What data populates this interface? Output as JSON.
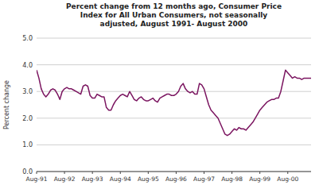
{
  "chart_data": {
    "type": "line",
    "title": "Percent change from 12 months ago, Consumer Price\nIndex for All Urban Consumers, not seasonally\nadjusted, August 1991- August 2000",
    "ylabel": "Percent change",
    "color": "#7B1560",
    "grid": true,
    "ylim": [
      0.0,
      5.0
    ],
    "yticks": [
      {
        "value": 0.0,
        "label": "0.0"
      },
      {
        "value": 1.0,
        "label": "1.0"
      },
      {
        "value": 2.0,
        "label": "2.0"
      },
      {
        "value": 3.0,
        "label": "3.0"
      },
      {
        "value": 4.0,
        "label": "4.0"
      },
      {
        "value": 5.0,
        "label": "5.0"
      }
    ],
    "categories": [
      "Aug-91",
      null,
      null,
      null,
      null,
      null,
      null,
      null,
      null,
      null,
      null,
      null,
      "Aug-92",
      null,
      null,
      null,
      null,
      null,
      null,
      null,
      null,
      null,
      null,
      null,
      "Aug-93",
      null,
      null,
      null,
      null,
      null,
      null,
      null,
      null,
      null,
      null,
      null,
      "Aug-94",
      null,
      null,
      null,
      null,
      null,
      null,
      null,
      null,
      null,
      null,
      null,
      "Aug-95",
      null,
      null,
      null,
      null,
      null,
      null,
      null,
      null,
      null,
      null,
      null,
      "Aug-96",
      null,
      null,
      null,
      null,
      null,
      null,
      null,
      null,
      null,
      null,
      null,
      "Aug-97",
      null,
      null,
      null,
      null,
      null,
      null,
      null,
      null,
      null,
      null,
      null,
      "Aug-98",
      null,
      null,
      null,
      null,
      null,
      null,
      null,
      null,
      null,
      null,
      null,
      "Aug-99",
      null,
      null,
      null,
      null,
      null,
      null,
      null,
      null,
      null,
      null,
      null,
      "Aug-00",
      null,
      null,
      null,
      null,
      null,
      null,
      null,
      null,
      null,
      null
    ],
    "values": [
      3.8,
      3.5,
      3.1,
      2.9,
      2.8,
      2.9,
      3.05,
      3.1,
      3.05,
      2.9,
      2.7,
      3.0,
      3.1,
      3.15,
      3.1,
      3.1,
      3.05,
      3.0,
      2.95,
      2.9,
      3.2,
      3.25,
      3.2,
      2.85,
      2.75,
      2.75,
      2.9,
      2.85,
      2.8,
      2.8,
      2.4,
      2.3,
      2.3,
      2.5,
      2.65,
      2.75,
      2.85,
      2.9,
      2.85,
      2.8,
      3.0,
      2.85,
      2.7,
      2.65,
      2.75,
      2.8,
      2.7,
      2.65,
      2.65,
      2.7,
      2.75,
      2.65,
      2.6,
      2.75,
      2.8,
      2.85,
      2.9,
      2.9,
      2.85,
      2.85,
      2.9,
      3.0,
      3.2,
      3.3,
      3.1,
      3.0,
      2.95,
      3.0,
      2.9,
      2.9,
      3.3,
      3.25,
      3.1,
      2.8,
      2.5,
      2.3,
      2.2,
      2.1,
      2.0,
      1.8,
      1.6,
      1.4,
      1.35,
      1.4,
      1.5,
      1.6,
      1.55,
      1.65,
      1.6,
      1.6,
      1.55,
      1.65,
      1.75,
      1.85,
      2.0,
      2.15,
      2.3,
      2.4,
      2.5,
      2.6,
      2.65,
      2.7,
      2.7,
      2.75,
      2.75,
      3.0,
      3.4,
      3.8,
      3.7,
      3.6,
      3.5,
      3.55,
      3.5,
      3.5,
      3.45,
      3.5,
      3.5,
      3.5,
      3.5
    ]
  }
}
